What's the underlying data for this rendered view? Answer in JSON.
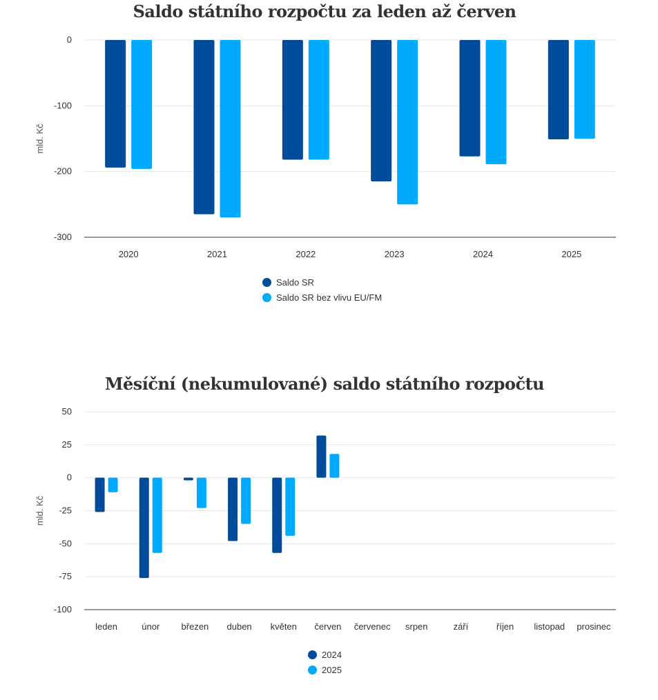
{
  "chart_data": [
    {
      "type": "bar",
      "title": "Saldo státního rozpočtu za leden až červen",
      "ylabel": "mld. Kč",
      "xlabel": "",
      "categories": [
        "2020",
        "2021",
        "2022",
        "2023",
        "2024",
        "2025"
      ],
      "ylim": [
        -300,
        0
      ],
      "yticks": [
        0,
        -100,
        -200,
        -300
      ],
      "grid": true,
      "legend_placement": "bottom-center",
      "series": [
        {
          "name": "Saldo SR",
          "color": "#004B9A",
          "values": [
            -194,
            -265,
            -182,
            -215,
            -177,
            -151
          ]
        },
        {
          "name": "Saldo SR bez vlivu EU/FM",
          "color": "#00AAFF",
          "values": [
            -196,
            -270,
            -182,
            -250,
            -189,
            -150
          ]
        }
      ]
    },
    {
      "type": "bar",
      "title": "Měsíční (nekumulované) saldo státního rozpočtu",
      "ylabel": "mld. Kč",
      "xlabel": "",
      "categories": [
        "leden",
        "únor",
        "březen",
        "duben",
        "květen",
        "červen",
        "červenec",
        "srpen",
        "září",
        "říjen",
        "listopad",
        "prosinec"
      ],
      "ylim": [
        -100,
        50
      ],
      "yticks": [
        50,
        25,
        0,
        -25,
        -50,
        -75,
        -100
      ],
      "grid": true,
      "legend_placement": "bottom-center",
      "series": [
        {
          "name": "2024",
          "color": "#004B9A",
          "values": [
            -26,
            -76,
            -2,
            -48,
            -57,
            32,
            null,
            null,
            null,
            null,
            null,
            null
          ]
        },
        {
          "name": "2025",
          "color": "#00AAFF",
          "values": [
            -11,
            -57,
            -23,
            -35,
            -44,
            18,
            null,
            null,
            null,
            null,
            null,
            null
          ]
        }
      ]
    }
  ]
}
